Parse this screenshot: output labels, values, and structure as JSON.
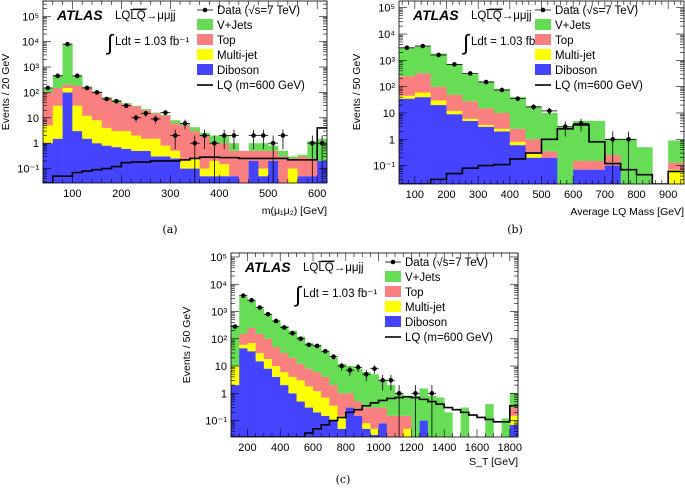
{
  "colors": {
    "vjets": "#66dd55",
    "top": "#fa8080",
    "multijet": "#ffff00",
    "diboson": "#4444ff",
    "data": "#000000",
    "lq": "#000000"
  },
  "chart_data": [
    {
      "type": "bar",
      "stacked": true,
      "log_y": true,
      "caption": "(a)",
      "xlabel": "m(μ₁μ₂) [GeV]",
      "ylabel": "Events / 20 GeV",
      "bin_start": 40,
      "bin_width": 20,
      "xlim": [
        40,
        620
      ],
      "ylim": [
        0.027,
        400000
      ],
      "xticks": [
        100,
        200,
        300,
        400,
        500,
        600
      ],
      "xtick_labels": [
        "100",
        "200",
        "300",
        "400",
        "500",
        "600"
      ],
      "yticks": [
        0.1,
        1,
        10,
        100,
        1000,
        10000,
        100000
      ],
      "ytick_labels": [
        "10⁻¹",
        "1",
        "10",
        "10²",
        "10³",
        "10⁴",
        "10⁵"
      ],
      "annotations": {
        "experiment": "ATLAS",
        "process": "LQ",
        "process_bar": "LQ",
        "process_decay": "→μμjj",
        "lumi": "Ldt = 1.03 fb⁻¹"
      },
      "legend": [
        "Data (√s=7 TeV)",
        "V+Jets",
        "Top",
        "Multi-jet",
        "Diboson",
        "LQ (m=600 GeV)"
      ],
      "legend_position": "top-right",
      "series": [
        {
          "name": "Diboson",
          "values": [
            1,
            1.5,
            100,
            3,
            1.5,
            1,
            0.8,
            0.7,
            0.6,
            0.5,
            0.5,
            0.3,
            0.3,
            0.25,
            0.1,
            0.1,
            0.05,
            0.05,
            0.05,
            0.05,
            0,
            0.2,
            0.05,
            0.2,
            0,
            0,
            0.05,
            0.05,
            0.2
          ]
        },
        {
          "name": "Multi-jet",
          "values": [
            4,
            28.5,
            50,
            27,
            10.5,
            7,
            3.2,
            2.3,
            2.4,
            1.5,
            1,
            1.2,
            0.5,
            0.25,
            0.1,
            0.15,
            0.05,
            0.15,
            0.1,
            0,
            0,
            0,
            0.05,
            0,
            0,
            0.1,
            0,
            0,
            0
          ]
        },
        {
          "name": "Top",
          "values": [
            95,
            120,
            50,
            150,
            138,
            92,
            56,
            37,
            32,
            26,
            18.5,
            13.5,
            11.2,
            5.5,
            4.8,
            2.75,
            1.9,
            0.8,
            0.85,
            0.45,
            0.5,
            0.3,
            0.4,
            0.3,
            0.3,
            0.15,
            0.25,
            0.2,
            0
          ]
        },
        {
          "name": "V+Jets",
          "values": [
            50,
            330,
            7800,
            270,
            20,
            10,
            5,
            10,
            3,
            2,
            2,
            1,
            1,
            2,
            1,
            1.25,
            0.6,
            1,
            1,
            0.5,
            0,
            0.5,
            0.5,
            0.3,
            0.2,
            0.05,
            0.05,
            0.95,
            1.3
          ]
        }
      ],
      "data": [
        150,
        450,
        8000,
        450,
        150,
        100,
        55,
        45,
        30,
        10,
        15,
        9,
        16,
        2,
        6,
        1,
        2,
        1,
        2,
        2,
        null,
        2,
        2,
        1,
        2,
        null,
        null,
        1,
        1
      ],
      "lq": [
        0.025,
        0.05,
        0.05,
        0.07,
        0.08,
        0.09,
        0.1,
        0.12,
        0.17,
        0.18,
        0.18,
        0.2,
        0.2,
        0.2,
        0.22,
        0.25,
        0.28,
        0.28,
        0.27,
        0.27,
        0.25,
        0.25,
        0.25,
        0.25,
        0.25,
        0.22,
        0.22,
        0.22,
        4
      ]
    },
    {
      "type": "bar",
      "stacked": true,
      "log_y": true,
      "caption": "(b)",
      "xlabel": "Average LQ Mass [GeV]",
      "ylabel": "Events / 50 GeV",
      "bin_start": 50,
      "bin_width": 50,
      "xlim": [
        50,
        950
      ],
      "ylim": [
        0.02,
        180000
      ],
      "xticks": [
        100,
        200,
        300,
        400,
        500,
        600,
        700,
        800,
        900
      ],
      "xtick_labels": [
        "100",
        "200",
        "300",
        "400",
        "500",
        "600",
        "700",
        "800",
        "900"
      ],
      "yticks": [
        0.1,
        1,
        10,
        100,
        1000,
        10000,
        100000
      ],
      "ytick_labels": [
        "10⁻¹",
        "1",
        "10",
        "10²",
        "10³",
        "10⁴",
        "10⁵"
      ],
      "annotations": {
        "experiment": "ATLAS",
        "process": "LQ",
        "process_bar": "LQ",
        "process_decay": "→μμjj",
        "lumi": "Ldt = 1.03 fb⁻¹"
      },
      "legend": [
        "Data (√s=7 TeV)",
        "V+Jets",
        "Top",
        "Multi-jet",
        "Diboson",
        "LQ (m=600 GeV)"
      ],
      "legend_position": "top-right",
      "series": [
        {
          "name": "Diboson",
          "values": [
            35,
            40,
            20,
            9,
            5,
            3,
            2,
            0.6,
            0.2,
            0.2,
            0,
            0.07,
            0.07,
            0.1,
            0,
            0,
            0,
            0
          ]
        },
        {
          "name": "Multi-jet",
          "values": [
            10,
            20,
            10,
            3,
            1,
            0.5,
            0.5,
            0.2,
            0.1,
            0,
            0,
            0,
            0,
            0,
            0,
            0,
            0,
            0.07
          ]
        },
        {
          "name": "Top",
          "values": [
            205,
            260,
            70,
            38,
            22,
            11.5,
            7.5,
            1.7,
            0.7,
            0.15,
            0,
            0.08,
            0.08,
            0.15,
            0,
            0,
            0,
            0.06
          ]
        },
        {
          "name": "V+Jets",
          "values": [
            2750,
            3180,
            1700,
            650,
            272,
            145,
            70,
            37.5,
            17,
            9.65,
            3,
            4.85,
            4.85,
            0.75,
            1,
            0.5,
            0,
            0.77
          ]
        }
      ],
      "data": [
        3000,
        3500,
        1600,
        700,
        320,
        150,
        75,
        35,
        17,
        12,
        3,
        4,
        null,
        1,
        1,
        null,
        null,
        null
      ],
      "lq": [
        0.02,
        0.02,
        0.03,
        0.05,
        0.08,
        0.1,
        0.11,
        0.18,
        0.3,
        1,
        2.5,
        3.5,
        0.8,
        0.12,
        0.07,
        0.045,
        0.02,
        0.06
      ]
    },
    {
      "type": "bar",
      "stacked": true,
      "log_y": true,
      "caption": "(c)",
      "xlabel": "S_T [GeV]",
      "ylabel": "Events / 50 GeV",
      "bin_start": 100,
      "bin_width": 50,
      "xlim": [
        100,
        1850
      ],
      "ylim": [
        0.025,
        140000
      ],
      "xticks": [
        200,
        400,
        600,
        800,
        1000,
        1200,
        1400,
        1600,
        1800
      ],
      "xtick_labels": [
        "200",
        "400",
        "600",
        "800",
        "1000",
        "1200",
        "1400",
        "1600",
        "1800"
      ],
      "yticks": [
        0.1,
        1,
        10,
        100,
        1000,
        10000,
        100000
      ],
      "ytick_labels": [
        "10⁻¹",
        "1",
        "10",
        "10²",
        "10³",
        "10⁴",
        "10⁵"
      ],
      "annotations": {
        "experiment": "ATLAS",
        "process": "LQ",
        "process_bar": "LQ",
        "process_decay": "→μμjj",
        "lumi": "Ldt = 1.03 fb⁻¹"
      },
      "legend": [
        "Data (√s=7 TeV)",
        "V+Jets",
        "Top",
        "Multi-jet",
        "Diboson",
        "LQ (m=600 GeV)"
      ],
      "legend_position": "top-right",
      "series": [
        {
          "name": "Diboson",
          "values": [
            2,
            45,
            35,
            15,
            8,
            4,
            2,
            1,
            0.5,
            0.3,
            0.2,
            0.15,
            0.1,
            0.05,
            0.3,
            0.15,
            0.05,
            0.03,
            0.08,
            0,
            0,
            0,
            0,
            0.1,
            0,
            0,
            0,
            0,
            0,
            0,
            0,
            0,
            0,
            0,
            0.07
          ]
        },
        {
          "name": "Multi-jet",
          "values": [
            8,
            15,
            35,
            15,
            10,
            6,
            4,
            3,
            2.5,
            1.5,
            1,
            0.55,
            0.25,
            0.1,
            0,
            0,
            0.03,
            0.02,
            0,
            0,
            0,
            0.05,
            0,
            0,
            0,
            0,
            0,
            0,
            0,
            0,
            0,
            0,
            0,
            0,
            0.08
          ]
        },
        {
          "name": "Top",
          "values": [
            0,
            90,
            180,
            120,
            82,
            40,
            24,
            16,
            9,
            6.2,
            4.8,
            3.3,
            1.65,
            0.85,
            0.7,
            0.35,
            0.22,
            0.25,
            0.22,
            0.15,
            0.15,
            0.1,
            0,
            0,
            0,
            0,
            0,
            0,
            0,
            0,
            0,
            0,
            0,
            0,
            0.15
          ]
        },
        {
          "name": "V+Jets",
          "values": [
            290,
            3350,
            2250,
            1150,
            700,
            400,
            270,
            180,
            108,
            62,
            54,
            31,
            18,
            11,
            9,
            7.5,
            5.7,
            4.7,
            2.7,
            1.85,
            0.85,
            0.65,
            0.8,
            1.4,
            0.8,
            0.7,
            0.2,
            0,
            0.3,
            0,
            0,
            0.4,
            0,
            0.12,
            0.7
          ]
        }
      ],
      "data": [
        280,
        3800,
        2600,
        1400,
        800,
        450,
        260,
        160,
        100,
        60,
        55,
        35,
        22,
        10,
        7,
        9,
        5,
        8,
        3,
        3,
        1,
        null,
        1,
        null,
        1,
        null,
        null,
        null,
        null,
        null,
        null,
        null,
        null,
        null,
        null
      ],
      "lq": [
        0.01,
        0.01,
        0.01,
        0.01,
        0.01,
        0.01,
        0.01,
        0.01,
        0.025,
        0.035,
        0.05,
        0.07,
        0.1,
        0.13,
        0.2,
        0.25,
        0.35,
        0.45,
        0.55,
        0.65,
        0.7,
        0.75,
        0.7,
        0.6,
        0.5,
        0.4,
        0.3,
        0.25,
        0.2,
        0.16,
        0.13,
        0.11,
        0.09,
        0.09,
        0.35
      ]
    }
  ]
}
